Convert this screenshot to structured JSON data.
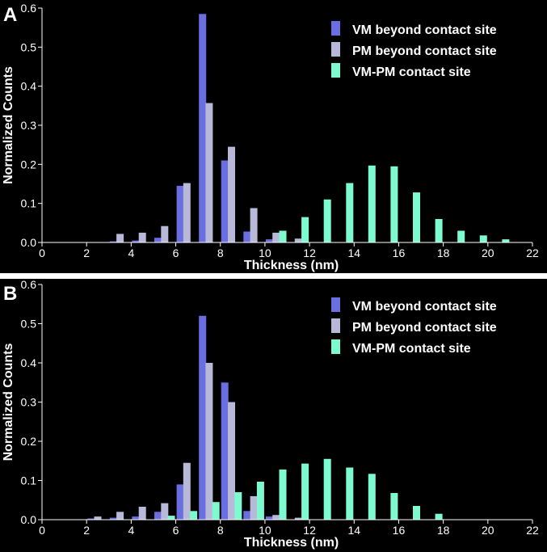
{
  "colors": {
    "background": "#000000",
    "vm": "#6b6ee0",
    "pm": "#b8b8d8",
    "contact": "#7dfad0",
    "text": "#ffffff"
  },
  "chart_data": [
    {
      "panel": "A",
      "type": "bar",
      "xlabel": "Thickness (nm)",
      "ylabel": "Normalized Counts",
      "xlim": [
        0,
        22
      ],
      "ylim": [
        0,
        0.6
      ],
      "xticks": [
        0,
        2,
        4,
        6,
        8,
        10,
        12,
        14,
        16,
        18,
        20,
        22
      ],
      "yticks": [
        "0.0",
        "0.1",
        "0.2",
        "0.3",
        "0.4",
        "0.5",
        "0.6"
      ],
      "legend_position": "top-right",
      "series": [
        {
          "name": "VM beyond contact site",
          "color_key": "vm",
          "x": [
            3.2,
            4.2,
            5.2,
            6.2,
            7.2,
            8.2,
            9.2,
            10.2
          ],
          "values": [
            0.003,
            0.005,
            0.012,
            0.145,
            0.585,
            0.21,
            0.028,
            0.008
          ]
        },
        {
          "name": "PM beyond contact site",
          "color_key": "pm",
          "x": [
            3.5,
            4.5,
            5.5,
            6.5,
            7.5,
            8.5,
            9.5,
            10.5,
            11.5
          ],
          "values": [
            0.022,
            0.025,
            0.042,
            0.152,
            0.357,
            0.245,
            0.088,
            0.025,
            0.01
          ]
        },
        {
          "name": "VM-PM contact site",
          "color_key": "contact",
          "x": [
            10.8,
            11.8,
            12.8,
            13.8,
            14.8,
            15.8,
            16.8,
            17.8,
            18.8,
            19.8,
            20.8
          ],
          "values": [
            0.03,
            0.065,
            0.11,
            0.152,
            0.197,
            0.195,
            0.128,
            0.06,
            0.03,
            0.018,
            0.008
          ]
        }
      ]
    },
    {
      "panel": "B",
      "type": "bar",
      "xlabel": "Thickness (nm)",
      "ylabel": "Normalized Counts",
      "xlim": [
        0,
        22
      ],
      "ylim": [
        0,
        0.6
      ],
      "xticks": [
        0,
        2,
        4,
        6,
        8,
        10,
        12,
        14,
        16,
        18,
        20,
        22
      ],
      "yticks": [
        "0.0",
        "0.1",
        "0.2",
        "0.3",
        "0.4",
        "0.5",
        "0.6"
      ],
      "legend_position": "top-right",
      "series": [
        {
          "name": "VM beyond contact site",
          "color_key": "vm",
          "x": [
            2.2,
            3.2,
            4.2,
            5.2,
            6.2,
            7.2,
            8.2,
            9.2,
            10.2
          ],
          "values": [
            0.003,
            0.005,
            0.008,
            0.02,
            0.09,
            0.52,
            0.35,
            0.022,
            0.008
          ]
        },
        {
          "name": "PM beyond contact site",
          "color_key": "pm",
          "x": [
            2.5,
            3.5,
            4.5,
            5.5,
            6.5,
            7.5,
            8.5,
            9.5,
            10.5,
            11.5
          ],
          "values": [
            0.008,
            0.02,
            0.033,
            0.042,
            0.145,
            0.4,
            0.3,
            0.06,
            0.012,
            0.005
          ]
        },
        {
          "name": "VM-PM contact site",
          "color_key": "contact",
          "x": [
            5.8,
            6.8,
            7.8,
            8.8,
            9.8,
            10.8,
            11.8,
            12.8,
            13.8,
            14.8,
            15.8,
            16.8,
            17.8
          ],
          "values": [
            0.01,
            0.022,
            0.045,
            0.07,
            0.097,
            0.128,
            0.143,
            0.155,
            0.133,
            0.117,
            0.068,
            0.035,
            0.015
          ]
        }
      ]
    }
  ]
}
